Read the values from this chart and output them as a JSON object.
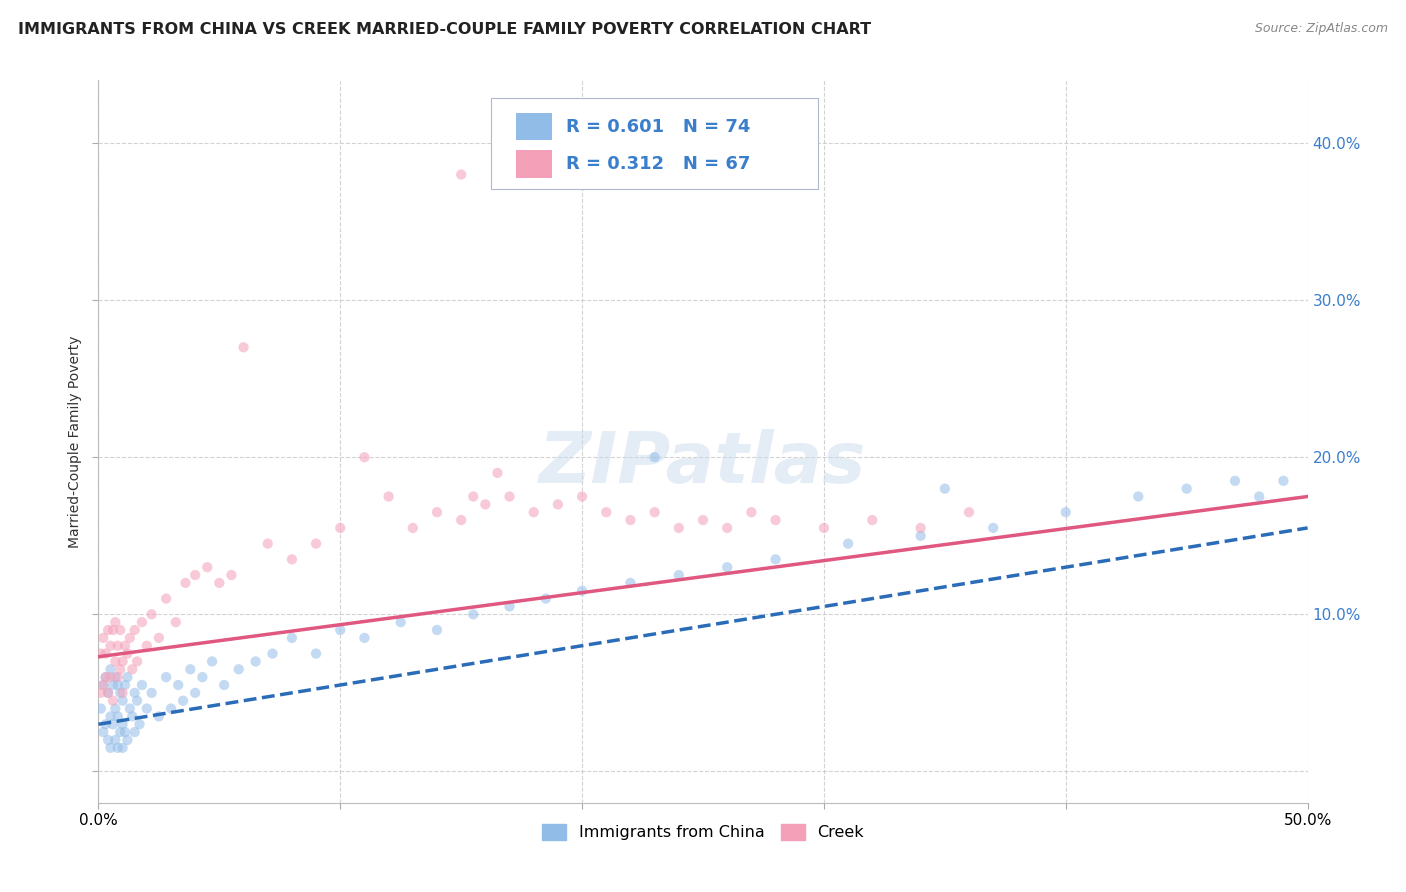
{
  "title": "IMMIGRANTS FROM CHINA VS CREEK MARRIED-COUPLE FAMILY POVERTY CORRELATION CHART",
  "source": "Source: ZipAtlas.com",
  "ylabel": "Married-Couple Family Poverty",
  "xlim": [
    0.0,
    0.5
  ],
  "ylim": [
    -0.02,
    0.44
  ],
  "xticks": [
    0.0,
    0.1,
    0.2,
    0.3,
    0.4,
    0.5
  ],
  "xticklabels_left": "0.0%",
  "xticklabels_right": "50.0%",
  "yticks": [
    0.0,
    0.1,
    0.2,
    0.3,
    0.4
  ],
  "yticklabels_right": [
    "",
    "10.0%",
    "20.0%",
    "30.0%",
    "40.0%"
  ],
  "series1_color": "#92bce8",
  "series2_color": "#f4a0b8",
  "trendline1_color": "#2b6cb8",
  "trendline2_color": "#e05880",
  "series1_label": "Immigrants from China",
  "series2_label": "Creek",
  "R1": 0.601,
  "N1": 74,
  "R2": 0.312,
  "N2": 67,
  "legend_text_color": "#3a7ecc",
  "background_color": "#ffffff",
  "watermark": "ZIPatlas",
  "title_fontsize": 11.5,
  "axis_label_fontsize": 10,
  "tick_fontsize": 11,
  "marker_size": 55,
  "marker_alpha": 0.55,
  "grid_color": "#c8c8c8",
  "grid_linestyle": "--",
  "grid_alpha": 0.8,
  "scatter1_x": [
    0.001,
    0.002,
    0.002,
    0.003,
    0.003,
    0.004,
    0.004,
    0.005,
    0.005,
    0.005,
    0.006,
    0.006,
    0.007,
    0.007,
    0.007,
    0.008,
    0.008,
    0.008,
    0.009,
    0.009,
    0.01,
    0.01,
    0.01,
    0.011,
    0.011,
    0.012,
    0.012,
    0.013,
    0.014,
    0.015,
    0.015,
    0.016,
    0.017,
    0.018,
    0.02,
    0.022,
    0.025,
    0.028,
    0.03,
    0.033,
    0.035,
    0.038,
    0.04,
    0.043,
    0.047,
    0.052,
    0.058,
    0.065,
    0.072,
    0.08,
    0.09,
    0.1,
    0.11,
    0.125,
    0.14,
    0.155,
    0.17,
    0.185,
    0.2,
    0.22,
    0.24,
    0.26,
    0.28,
    0.31,
    0.34,
    0.37,
    0.4,
    0.43,
    0.45,
    0.47,
    0.48,
    0.49,
    0.23,
    0.35
  ],
  "scatter1_y": [
    0.04,
    0.055,
    0.025,
    0.06,
    0.03,
    0.05,
    0.02,
    0.065,
    0.035,
    0.015,
    0.055,
    0.03,
    0.06,
    0.04,
    0.02,
    0.055,
    0.035,
    0.015,
    0.05,
    0.025,
    0.045,
    0.03,
    0.015,
    0.055,
    0.025,
    0.06,
    0.02,
    0.04,
    0.035,
    0.05,
    0.025,
    0.045,
    0.03,
    0.055,
    0.04,
    0.05,
    0.035,
    0.06,
    0.04,
    0.055,
    0.045,
    0.065,
    0.05,
    0.06,
    0.07,
    0.055,
    0.065,
    0.07,
    0.075,
    0.085,
    0.075,
    0.09,
    0.085,
    0.095,
    0.09,
    0.1,
    0.105,
    0.11,
    0.115,
    0.12,
    0.125,
    0.13,
    0.135,
    0.145,
    0.15,
    0.155,
    0.165,
    0.175,
    0.18,
    0.185,
    0.175,
    0.185,
    0.2,
    0.18
  ],
  "scatter2_x": [
    0.001,
    0.001,
    0.002,
    0.002,
    0.003,
    0.003,
    0.004,
    0.004,
    0.005,
    0.005,
    0.006,
    0.006,
    0.007,
    0.007,
    0.008,
    0.008,
    0.009,
    0.009,
    0.01,
    0.01,
    0.011,
    0.012,
    0.013,
    0.014,
    0.015,
    0.016,
    0.018,
    0.02,
    0.022,
    0.025,
    0.028,
    0.032,
    0.036,
    0.04,
    0.045,
    0.05,
    0.055,
    0.06,
    0.07,
    0.08,
    0.09,
    0.1,
    0.11,
    0.12,
    0.13,
    0.14,
    0.15,
    0.16,
    0.17,
    0.18,
    0.19,
    0.2,
    0.21,
    0.22,
    0.23,
    0.24,
    0.25,
    0.26,
    0.27,
    0.28,
    0.165,
    0.155,
    0.3,
    0.32,
    0.34,
    0.36,
    0.15
  ],
  "scatter2_y": [
    0.075,
    0.05,
    0.085,
    0.055,
    0.075,
    0.06,
    0.09,
    0.05,
    0.08,
    0.06,
    0.09,
    0.045,
    0.07,
    0.095,
    0.06,
    0.08,
    0.065,
    0.09,
    0.07,
    0.05,
    0.08,
    0.075,
    0.085,
    0.065,
    0.09,
    0.07,
    0.095,
    0.08,
    0.1,
    0.085,
    0.11,
    0.095,
    0.12,
    0.125,
    0.13,
    0.12,
    0.125,
    0.27,
    0.145,
    0.135,
    0.145,
    0.155,
    0.2,
    0.175,
    0.155,
    0.165,
    0.16,
    0.17,
    0.175,
    0.165,
    0.17,
    0.175,
    0.165,
    0.16,
    0.165,
    0.155,
    0.16,
    0.155,
    0.165,
    0.16,
    0.19,
    0.175,
    0.155,
    0.16,
    0.155,
    0.165,
    0.38
  ],
  "trendline1_start_x": 0.0,
  "trendline1_end_x": 0.5,
  "trendline1_start_y": 0.03,
  "trendline1_end_y": 0.155,
  "trendline2_start_x": 0.0,
  "trendline2_end_x": 0.5,
  "trendline2_start_y": 0.073,
  "trendline2_end_y": 0.175
}
